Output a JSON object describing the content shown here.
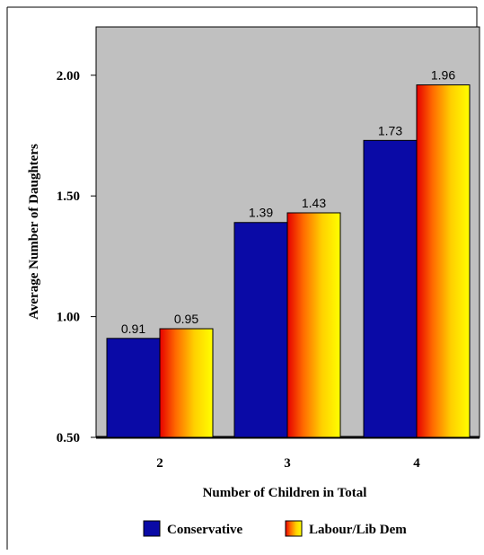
{
  "chart_data": {
    "type": "bar",
    "categories": [
      "2",
      "3",
      "4"
    ],
    "series": [
      {
        "name": "Conservative",
        "values": [
          0.91,
          1.39,
          1.73
        ],
        "value_labels": [
          "0.91",
          "1.39",
          "1.73"
        ],
        "color": "#0a0aa6"
      },
      {
        "name": "Labour/Lib Dem",
        "values": [
          0.95,
          1.43,
          1.96
        ],
        "value_labels": [
          "0.95",
          "1.43",
          "1.96"
        ],
        "color": "gradient-red-orange-yellow"
      }
    ],
    "title": "",
    "xlabel": "Number of Children in Total",
    "ylabel": "Average Number of Daughters",
    "ylim": [
      0.5,
      2.2
    ],
    "yticks": [
      0.5,
      1.0,
      1.5,
      2.0
    ],
    "ytick_labels": [
      "0.50",
      "1.00",
      "1.50",
      "2.00"
    ],
    "plot_background": "#c0c0c0",
    "grid": false,
    "legend_position": "bottom"
  }
}
